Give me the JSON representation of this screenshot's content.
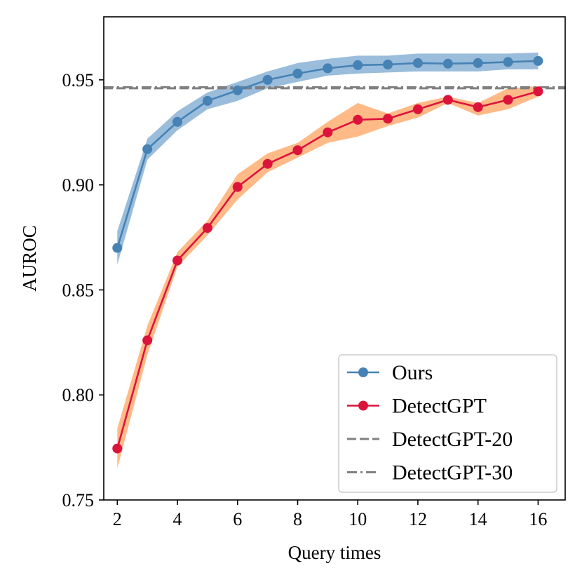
{
  "chart_data": {
    "type": "line",
    "title": "",
    "xlabel": "Query times",
    "ylabel": "AUROC",
    "xlim": [
      1.55,
      16.9
    ],
    "ylim": [
      0.75,
      0.98
    ],
    "x_ticks": [
      2,
      4,
      6,
      8,
      10,
      12,
      14,
      16
    ],
    "y_ticks": [
      0.75,
      0.8,
      0.85,
      0.9,
      0.95
    ],
    "y_tick_labels": [
      "0.75",
      "0.80",
      "0.85",
      "0.90",
      "0.95"
    ],
    "grid": false,
    "legend_position": "lower-right",
    "series": [
      {
        "name": "Ours",
        "color": "#4682b4",
        "band_color": "#8fb6d8",
        "marker": "circle",
        "x": [
          2,
          3,
          4,
          5,
          6,
          7,
          8,
          9,
          10,
          11,
          12,
          13,
          14,
          15,
          16
        ],
        "y": [
          0.87,
          0.917,
          0.93,
          0.94,
          0.945,
          0.95,
          0.953,
          0.9555,
          0.957,
          0.9573,
          0.958,
          0.9577,
          0.958,
          0.9585,
          0.959
        ],
        "lower": [
          0.862,
          0.912,
          0.926,
          0.936,
          0.94,
          0.946,
          0.949,
          0.952,
          0.953,
          0.9535,
          0.954,
          0.954,
          0.954,
          0.955,
          0.955
        ],
        "upper": [
          0.878,
          0.922,
          0.935,
          0.944,
          0.949,
          0.954,
          0.958,
          0.96,
          0.9615,
          0.9615,
          0.9625,
          0.9625,
          0.9625,
          0.9625,
          0.963
        ]
      },
      {
        "name": "DetectGPT",
        "color": "#dc143c",
        "band_color": "#ffb27a",
        "marker": "circle",
        "x": [
          2,
          3,
          4,
          5,
          6,
          7,
          8,
          9,
          10,
          11,
          12,
          13,
          14,
          15,
          16
        ],
        "y": [
          0.7745,
          0.826,
          0.864,
          0.8795,
          0.899,
          0.91,
          0.9165,
          0.925,
          0.931,
          0.9315,
          0.936,
          0.9405,
          0.937,
          0.9405,
          0.9445
        ],
        "lower": [
          0.765,
          0.819,
          0.861,
          0.876,
          0.893,
          0.906,
          0.913,
          0.92,
          0.923,
          0.928,
          0.932,
          0.939,
          0.933,
          0.936,
          0.942
        ],
        "upper": [
          0.784,
          0.833,
          0.868,
          0.883,
          0.905,
          0.915,
          0.92,
          0.93,
          0.939,
          0.934,
          0.939,
          0.942,
          0.939,
          0.946,
          0.947
        ]
      }
    ],
    "reference_lines": [
      {
        "name": "DetectGPT-20",
        "value": 0.946,
        "style": "dashed",
        "color": "#808080"
      },
      {
        "name": "DetectGPT-30",
        "value": 0.9465,
        "style": "dashdot",
        "color": "#808080"
      }
    ]
  }
}
